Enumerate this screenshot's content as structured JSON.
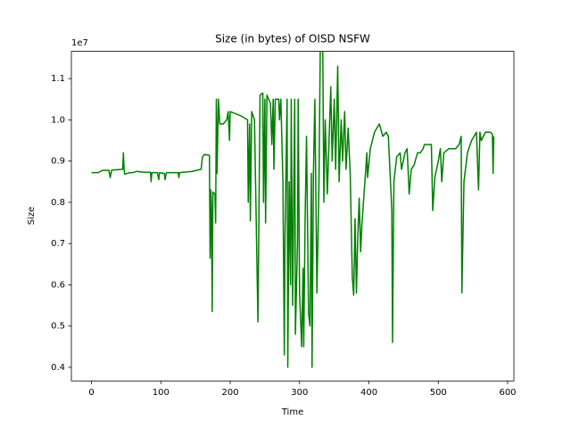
{
  "chart_data": {
    "type": "line",
    "title": "Size (in bytes) of OISD NSFW",
    "x_label": "Time",
    "y_label": "Size",
    "y_offset_label": "1e7",
    "x": [
      0,
      10,
      15,
      25,
      27,
      29,
      45,
      46,
      47,
      48,
      55,
      60,
      65,
      75,
      85,
      86,
      87,
      95,
      97,
      98,
      105,
      106,
      108,
      125,
      126,
      127,
      145,
      158,
      160,
      163,
      170,
      171,
      172,
      173,
      174,
      175,
      178,
      179,
      180,
      181,
      183,
      185,
      190,
      195,
      197,
      199,
      200,
      215,
      225,
      226,
      228,
      229,
      231,
      235,
      240,
      243,
      247,
      248,
      250,
      251,
      253,
      258,
      260,
      262,
      263,
      265,
      270,
      271,
      273,
      276,
      278,
      279,
      282,
      283,
      285,
      287,
      288,
      290,
      293,
      294,
      297,
      298,
      300,
      303,
      305,
      306,
      308,
      310,
      313,
      315,
      317,
      318,
      320,
      322,
      325,
      328,
      330,
      333,
      335,
      337,
      340,
      345,
      347,
      350,
      352,
      355,
      357,
      360,
      362,
      365,
      367,
      370,
      373,
      376,
      378,
      380,
      382,
      384,
      386,
      388,
      390,
      395,
      397,
      398,
      402,
      408,
      415,
      420,
      425,
      428,
      433,
      434,
      436,
      440,
      445,
      447,
      452,
      455,
      457,
      458,
      461,
      465,
      470,
      474,
      478,
      480,
      490,
      492,
      495,
      500,
      503,
      505,
      508,
      515,
      525,
      530,
      533,
      534,
      537,
      542,
      548,
      555,
      558,
      560,
      562,
      568,
      575,
      578,
      579,
      580
    ],
    "series": [
      {
        "name": "Size",
        "color": "#008000",
        "values": [
          0.872,
          0.872,
          0.877,
          0.878,
          0.86,
          0.878,
          0.88,
          0.92,
          0.88,
          0.868,
          0.872,
          0.872,
          0.875,
          0.873,
          0.873,
          0.85,
          0.872,
          0.872,
          0.855,
          0.872,
          0.87,
          0.855,
          0.872,
          0.872,
          0.86,
          0.872,
          0.875,
          0.88,
          0.91,
          0.916,
          0.914,
          0.665,
          0.83,
          0.78,
          0.535,
          0.825,
          0.82,
          0.75,
          1.05,
          0.87,
          1.05,
          0.99,
          0.99,
          1.0,
          1.02,
          0.95,
          1.02,
          1.01,
          1.0,
          0.8,
          0.99,
          0.755,
          1.02,
          1.0,
          0.51,
          1.06,
          1.065,
          0.8,
          1.05,
          0.75,
          1.06,
          1.04,
          0.94,
          1.05,
          0.88,
          1.05,
          1.05,
          1.0,
          1.05,
          0.85,
          0.43,
          0.72,
          1.05,
          0.4,
          0.85,
          0.6,
          1.05,
          0.55,
          1.05,
          0.48,
          0.7,
          1.05,
          0.58,
          0.45,
          0.64,
          0.45,
          0.76,
          0.96,
          0.53,
          0.5,
          0.87,
          0.4,
          0.87,
          1.05,
          0.58,
          0.85,
          1.2,
          1.28,
          0.8,
          1.0,
          0.82,
          1.08,
          0.9,
          1.05,
          0.88,
          1.13,
          0.85,
          1.0,
          0.9,
          1.02,
          0.88,
          0.98,
          0.87,
          0.62,
          0.575,
          0.76,
          0.58,
          0.72,
          0.81,
          0.68,
          0.75,
          0.87,
          0.92,
          0.86,
          0.93,
          0.97,
          0.99,
          0.96,
          0.97,
          0.96,
          0.78,
          0.46,
          0.85,
          0.91,
          0.92,
          0.88,
          0.92,
          0.93,
          0.86,
          0.82,
          0.88,
          0.89,
          0.92,
          0.92,
          0.93,
          0.94,
          0.94,
          0.78,
          0.86,
          0.9,
          0.93,
          0.85,
          0.92,
          0.93,
          0.93,
          0.94,
          0.96,
          0.58,
          0.85,
          0.92,
          0.95,
          0.97,
          0.83,
          0.97,
          0.95,
          0.97,
          0.97,
          0.965,
          0.87,
          0.96
        ]
      }
    ],
    "xlim": [
      -29,
      609
    ],
    "ylim": [
      0.367,
      1.166
    ],
    "xticks": [
      0,
      100,
      200,
      300,
      400,
      500,
      600
    ],
    "yticks": [
      0.4,
      0.5,
      0.6,
      0.7,
      0.8,
      0.9,
      {
        "value": 1,
        "label": "1.0"
      },
      1.1
    ],
    "grid": false
  }
}
